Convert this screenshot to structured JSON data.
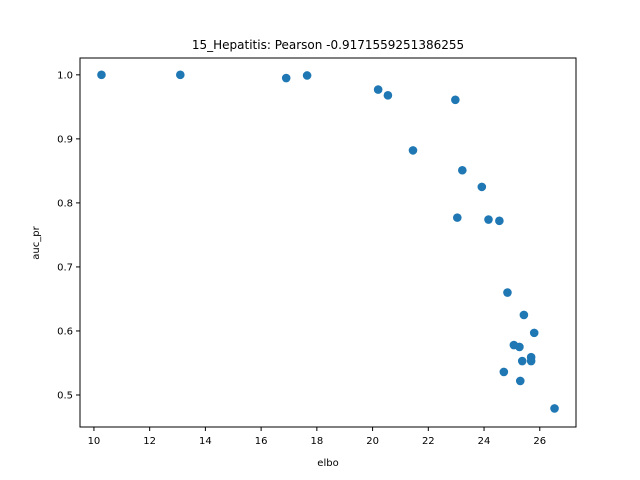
{
  "chart_data": {
    "type": "scatter",
    "title": "15_Hepatitis: Pearson -0.9171559251386255",
    "xlabel": "elbo",
    "ylabel": "auc_pr",
    "xlim": [
      9.5,
      27.3
    ],
    "ylim": [
      0.45,
      1.0263
    ],
    "xticks": [
      10,
      12,
      14,
      16,
      18,
      20,
      22,
      24,
      26
    ],
    "xtick_labels": [
      "10",
      "12",
      "14",
      "16",
      "18",
      "20",
      "22",
      "24",
      "26"
    ],
    "yticks": [
      0.5,
      0.6,
      0.7,
      0.8,
      0.9,
      1.0
    ],
    "ytick_labels": [
      "0.5",
      "0.6",
      "0.7",
      "0.8",
      "0.9",
      "1.0"
    ],
    "grid": false,
    "marker_color": "#1f77b4",
    "points": [
      {
        "x": 10.27,
        "y": 1.0
      },
      {
        "x": 13.1,
        "y": 1.0
      },
      {
        "x": 16.9,
        "y": 0.995
      },
      {
        "x": 17.65,
        "y": 0.999
      },
      {
        "x": 20.2,
        "y": 0.977
      },
      {
        "x": 20.55,
        "y": 0.968
      },
      {
        "x": 21.45,
        "y": 0.882
      },
      {
        "x": 22.97,
        "y": 0.961
      },
      {
        "x": 23.04,
        "y": 0.777
      },
      {
        "x": 23.22,
        "y": 0.851
      },
      {
        "x": 23.92,
        "y": 0.825
      },
      {
        "x": 24.16,
        "y": 0.774
      },
      {
        "x": 24.55,
        "y": 0.772
      },
      {
        "x": 24.71,
        "y": 0.536
      },
      {
        "x": 24.84,
        "y": 0.66
      },
      {
        "x": 25.07,
        "y": 0.578
      },
      {
        "x": 25.27,
        "y": 0.575
      },
      {
        "x": 25.3,
        "y": 0.522
      },
      {
        "x": 25.37,
        "y": 0.553
      },
      {
        "x": 25.43,
        "y": 0.625
      },
      {
        "x": 25.69,
        "y": 0.559
      },
      {
        "x": 25.69,
        "y": 0.553
      },
      {
        "x": 25.8,
        "y": 0.597
      },
      {
        "x": 26.53,
        "y": 0.479
      }
    ]
  }
}
